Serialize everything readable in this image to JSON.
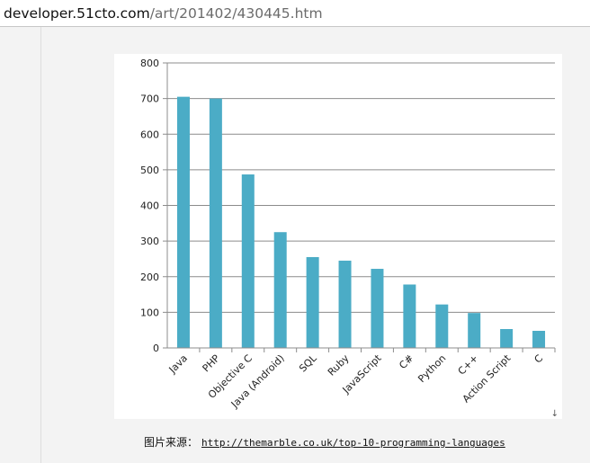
{
  "browser": {
    "url_domain": "developer.51cto.com",
    "url_path": "/art/201402/430445.htm"
  },
  "caption": {
    "label": "图片来源：",
    "link_text": "http://themarble.co.uk/top-10-programming-languages"
  },
  "colors": {
    "bar": "#4bacc6",
    "grid": "#8c8c8c",
    "text": "#222222"
  },
  "chart_data": {
    "type": "bar",
    "title": "",
    "xlabel": "",
    "ylabel": "",
    "ylim": [
      0,
      800
    ],
    "yticks": [
      0,
      100,
      200,
      300,
      400,
      500,
      600,
      700,
      800
    ],
    "grid": true,
    "legend": "none",
    "categories": [
      "Java",
      "PHP",
      "Objective C",
      "Java (Android)",
      "SQL",
      "Ruby",
      "JavaScript",
      "C#",
      "Python",
      "C++",
      "Action Script",
      "C"
    ],
    "values": [
      705,
      700,
      487,
      325,
      255,
      245,
      222,
      178,
      122,
      98,
      53,
      48
    ]
  },
  "scroll_marker": "↓"
}
